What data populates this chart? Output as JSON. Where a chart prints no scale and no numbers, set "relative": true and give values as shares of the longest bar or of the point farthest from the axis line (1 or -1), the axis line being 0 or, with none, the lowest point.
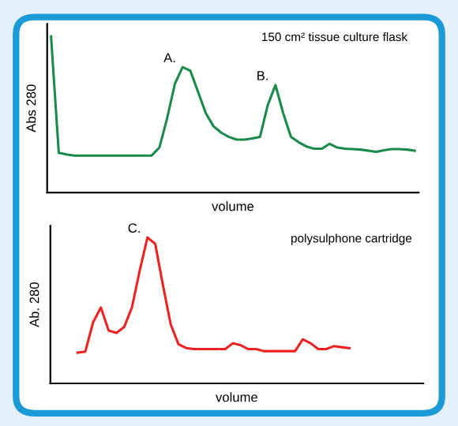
{
  "chart_data": [
    {
      "type": "line",
      "relative": true,
      "xlabel": "volume",
      "ylabel": "Abs 280",
      "categories": [
        null,
        null,
        null,
        null,
        null,
        null,
        null,
        null,
        null,
        null,
        null,
        null,
        null,
        null,
        null,
        null,
        null,
        null,
        null,
        null,
        null,
        null,
        null,
        null,
        null,
        null,
        null,
        null,
        null,
        null,
        null,
        null,
        null,
        null,
        null,
        null,
        null,
        null,
        null,
        null,
        null,
        null,
        null,
        null,
        null,
        null,
        null,
        null
      ],
      "series": [
        {
          "color": "#1a8a4a",
          "values": [
            1.0,
            0.254,
            0.244,
            0.237,
            0.237,
            0.237,
            0.237,
            0.237,
            0.237,
            0.237,
            0.237,
            0.237,
            0.237,
            0.237,
            0.288,
            0.475,
            0.695,
            0.803,
            0.78,
            0.644,
            0.508,
            0.424,
            0.383,
            0.356,
            0.339,
            0.339,
            0.346,
            0.356,
            0.559,
            0.688,
            0.508,
            0.356,
            0.322,
            0.295,
            0.281,
            0.281,
            0.312,
            0.288,
            0.281,
            0.278,
            0.275,
            0.268,
            0.261,
            0.271,
            0.278,
            0.278,
            0.275,
            0.268
          ]
        }
      ],
      "annotations": [
        "150 cm² tissue culture flask",
        "A.",
        "B."
      ]
    },
    {
      "type": "line",
      "relative": true,
      "xlabel": "volume",
      "ylabel": "Ab. 280",
      "categories": [
        null,
        null,
        null,
        null,
        null,
        null,
        null,
        null,
        null,
        null,
        null,
        null,
        null,
        null,
        null,
        null,
        null,
        null,
        null,
        null,
        null,
        null,
        null,
        null,
        null,
        null,
        null,
        null,
        null,
        null,
        null,
        null,
        null,
        null,
        null,
        null,
        null,
        null,
        null,
        null,
        null,
        null,
        null,
        null,
        null,
        null,
        null,
        null
      ],
      "series": [
        {
          "color": "#ee2222",
          "values": [
            null,
            null,
            null,
            0.211,
            0.218,
            0.419,
            0.52,
            0.362,
            0.346,
            0.386,
            0.52,
            0.772,
            1.0,
            0.956,
            0.671,
            0.403,
            0.268,
            0.242,
            0.235,
            0.235,
            0.235,
            0.235,
            0.235,
            0.275,
            0.262,
            0.235,
            0.235,
            0.221,
            0.221,
            0.221,
            0.221,
            0.221,
            0.302,
            0.275,
            0.235,
            0.235,
            0.255,
            0.248,
            0.242,
            null,
            null,
            null,
            null,
            null,
            null,
            null,
            null,
            null
          ]
        }
      ],
      "annotations": [
        "polysulphone cartridge",
        "C."
      ]
    }
  ]
}
